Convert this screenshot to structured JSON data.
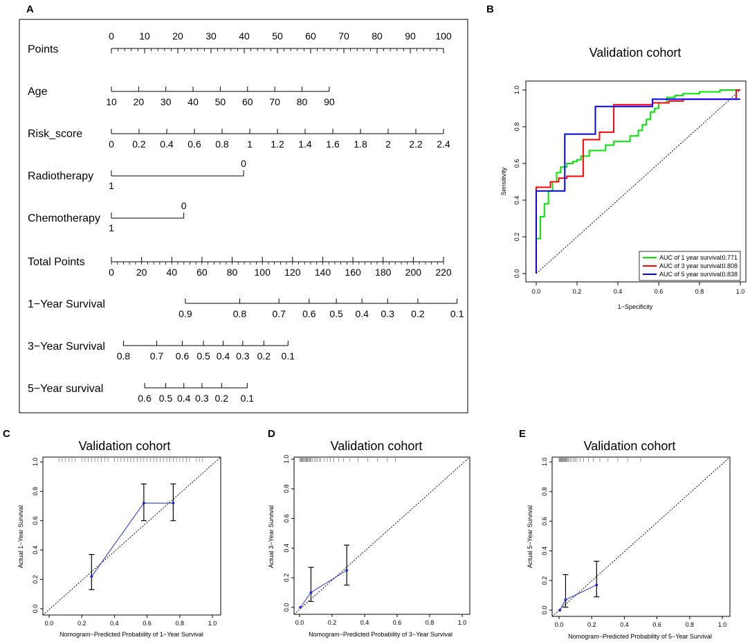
{
  "panel_labels": {
    "A": "A",
    "B": "B",
    "C": "C",
    "D": "D",
    "E": "E"
  },
  "chart_data": [
    {
      "panel": "A",
      "type": "nomogram",
      "scales": [
        {
          "name": "Points",
          "ticks": [
            "0",
            "10",
            "20",
            "30",
            "40",
            "50",
            "60",
            "70",
            "80",
            "90",
            "100"
          ],
          "values": [
            0,
            10,
            20,
            30,
            40,
            50,
            60,
            70,
            80,
            90,
            100
          ],
          "minor": true,
          "labels_above": true
        },
        {
          "name": "Age",
          "ticks": [
            "10",
            "20",
            "30",
            "40",
            "50",
            "60",
            "70",
            "80",
            "90"
          ],
          "points": [
            0,
            8.2,
            16.4,
            24.6,
            32.8,
            41.0,
            49.2,
            57.4,
            65.6
          ]
        },
        {
          "name": "Risk_score",
          "ticks": [
            "0",
            "0.2",
            "0.4",
            "0.6",
            "0.8",
            "1",
            "1.2",
            "1.4",
            "1.6",
            "1.8",
            "2",
            "2.2",
            "2.4"
          ],
          "points": [
            0,
            8.33,
            16.67,
            25,
            33.33,
            41.67,
            50,
            58.33,
            66.67,
            75,
            83.33,
            91.67,
            100
          ]
        },
        {
          "name": "Radiotherapy",
          "ticks": [
            "0",
            "1"
          ],
          "points": [
            39.8,
            0
          ],
          "ends": true
        },
        {
          "name": "Chemotherapy",
          "ticks": [
            "0",
            "1"
          ],
          "points": [
            21.8,
            0
          ],
          "ends": true
        },
        {
          "name": "Total Points",
          "ticks": [
            "0",
            "20",
            "40",
            "60",
            "80",
            "100",
            "120",
            "140",
            "160",
            "180",
            "200",
            "220"
          ],
          "values": [
            0,
            20,
            40,
            60,
            80,
            100,
            120,
            140,
            160,
            180,
            200,
            220
          ],
          "minor": true
        },
        {
          "name": "1−Year Survival",
          "ticks": [
            "0.9",
            "0.8",
            "0.7",
            "0.6",
            "0.5",
            "0.4",
            "0.3",
            "0.2",
            "0.1"
          ],
          "total_points": [
            49,
            85,
            111,
            131,
            149,
            166,
            183,
            203,
            229
          ]
        },
        {
          "name": "3−Year Survival",
          "ticks": [
            "0.8",
            "0.7",
            "0.6",
            "0.5",
            "0.4",
            "0.3",
            "0.2",
            "0.1"
          ],
          "total_points": [
            8,
            30,
            47,
            61,
            74,
            87,
            101,
            117
          ]
        },
        {
          "name": "5−Year survival",
          "ticks": [
            "0.6",
            "0.5",
            "0.4",
            "0.3",
            "0.2",
            "0.1"
          ],
          "total_points": [
            22,
            36,
            48,
            60,
            73,
            90
          ]
        }
      ]
    },
    {
      "panel": "B",
      "type": "line",
      "title": "Validation cohort",
      "xlabel": "1−Specificity",
      "ylabel": "Sensitivity",
      "xlim": [
        0,
        1
      ],
      "ylim": [
        0,
        1
      ],
      "ticks": [
        "0.0",
        "0.2",
        "0.4",
        "0.6",
        "0.8",
        "1.0"
      ],
      "series": [
        {
          "name": "AUC of 1 year survival:",
          "auc": "0.771",
          "color": "#00e600",
          "x": [
            0,
            0,
            0.02,
            0.02,
            0.04,
            0.04,
            0.06,
            0.06,
            0.08,
            0.08,
            0.1,
            0.1,
            0.12,
            0.12,
            0.15,
            0.15,
            0.18,
            0.18,
            0.2,
            0.2,
            0.22,
            0.22,
            0.26,
            0.26,
            0.34,
            0.34,
            0.38,
            0.38,
            0.46,
            0.46,
            0.5,
            0.5,
            0.52,
            0.52,
            0.54,
            0.54,
            0.56,
            0.56,
            0.58,
            0.58,
            0.6,
            0.6,
            0.64,
            0.64,
            0.68,
            0.68,
            0.72,
            0.72,
            0.8,
            0.8,
            0.9,
            0.9,
            1.0,
            1.0
          ],
          "y": [
            0,
            0.19,
            0.19,
            0.31,
            0.31,
            0.38,
            0.38,
            0.45,
            0.45,
            0.5,
            0.5,
            0.55,
            0.55,
            0.58,
            0.58,
            0.6,
            0.6,
            0.61,
            0.61,
            0.62,
            0.62,
            0.64,
            0.64,
            0.67,
            0.67,
            0.7,
            0.7,
            0.72,
            0.72,
            0.75,
            0.75,
            0.78,
            0.78,
            0.81,
            0.81,
            0.84,
            0.84,
            0.88,
            0.88,
            0.9,
            0.9,
            0.93,
            0.93,
            0.96,
            0.96,
            0.97,
            0.97,
            0.98,
            0.98,
            0.99,
            0.99,
            1.0,
            1.0,
            1.0
          ]
        },
        {
          "name": "AUC of 3 year survival:",
          "auc": "0.808",
          "color": "#ff0000",
          "x": [
            0,
            0,
            0.07,
            0.07,
            0.11,
            0.11,
            0.15,
            0.15,
            0.23,
            0.23,
            0.31,
            0.31,
            0.38,
            0.38,
            0.57,
            0.57,
            0.65,
            0.65,
            0.72,
            0.72,
            0.98,
            0.98,
            1.0
          ],
          "y": [
            0,
            0.47,
            0.47,
            0.5,
            0.5,
            0.52,
            0.52,
            0.53,
            0.53,
            0.73,
            0.73,
            0.77,
            0.77,
            0.92,
            0.92,
            0.93,
            0.93,
            0.94,
            0.94,
            0.95,
            0.95,
            1.0,
            1.0
          ]
        },
        {
          "name": "AUC of 5 year survival:",
          "auc": "0.838",
          "color": "#0000ff",
          "x": [
            0,
            0,
            0.14,
            0.14,
            0.29,
            0.29,
            0.57,
            0.57,
            1.0,
            1.0
          ],
          "y": [
            0,
            0.45,
            0.45,
            0.76,
            0.76,
            0.91,
            0.91,
            0.95,
            0.95,
            0.95
          ]
        }
      ],
      "reference": {
        "x": [
          0,
          1
        ],
        "y": [
          0,
          1
        ]
      }
    },
    {
      "panel": "C",
      "type": "scatter",
      "title": "Validation cohort",
      "xlabel": "Nomogram−Predicted Probability of 1−Year Survival",
      "ylabel": "Actual 1−Year Survival",
      "xlim": [
        0,
        1
      ],
      "ylim": [
        0,
        1
      ],
      "ticks": [
        "0.0",
        "0.2",
        "0.4",
        "0.6",
        "0.8",
        "1.0"
      ],
      "x": [
        0.26,
        0.58,
        0.76
      ],
      "y": [
        0.22,
        0.72,
        0.72
      ],
      "ci_low": [
        0.13,
        0.6,
        0.6
      ],
      "ci_high": [
        0.37,
        0.85,
        0.85
      ],
      "rug": [
        0.06,
        0.08,
        0.1,
        0.12,
        0.14,
        0.16,
        0.2,
        0.22,
        0.24,
        0.26,
        0.28,
        0.3,
        0.32,
        0.34,
        0.36,
        0.4,
        0.42,
        0.44,
        0.46,
        0.48,
        0.5,
        0.52,
        0.54,
        0.56,
        0.58,
        0.6,
        0.62,
        0.64,
        0.66,
        0.68,
        0.7,
        0.72,
        0.74,
        0.76,
        0.78,
        0.8,
        0.82,
        0.84,
        0.86,
        0.9,
        0.92,
        0.94
      ]
    },
    {
      "panel": "D",
      "type": "scatter",
      "title": "Validation cohort",
      "xlabel": "Nomogram−Predicted Probability of 3−Year Survival",
      "ylabel": "Actual 3−Year Survival",
      "xlim": [
        0,
        1
      ],
      "ylim": [
        0,
        1
      ],
      "ticks": [
        "0.0",
        "0.2",
        "0.4",
        "0.6",
        "0.8",
        "1.0"
      ],
      "x": [
        0.005,
        0.07,
        0.29
      ],
      "y": [
        0.0,
        0.1,
        0.25
      ],
      "ci_low": [
        0.0,
        0.04,
        0.15
      ],
      "ci_high": [
        0.0,
        0.27,
        0.42
      ],
      "rug": [
        0.0,
        0.005,
        0.01,
        0.015,
        0.02,
        0.025,
        0.03,
        0.035,
        0.04,
        0.045,
        0.05,
        0.055,
        0.06,
        0.065,
        0.07,
        0.08,
        0.09,
        0.1,
        0.11,
        0.12,
        0.13,
        0.15,
        0.17,
        0.19,
        0.21,
        0.24,
        0.27,
        0.31,
        0.36,
        0.42,
        0.48,
        0.54,
        0.59
      ]
    },
    {
      "panel": "E",
      "type": "scatter",
      "title": "Validation cohort",
      "xlabel": "Nomogram−Predicted Probability of 5−Year Survival",
      "ylabel": "Actual 5−Year Survival",
      "xlim": [
        0,
        1
      ],
      "ylim": [
        0,
        1
      ],
      "ticks": [
        "0.0",
        "0.2",
        "0.4",
        "0.6",
        "0.8",
        "1.0"
      ],
      "x": [
        0.005,
        0.04,
        0.23
      ],
      "y": [
        0.0,
        0.07,
        0.17
      ],
      "ci_low": [
        0.0,
        0.02,
        0.09
      ],
      "ci_high": [
        0.0,
        0.24,
        0.33
      ],
      "rug": [
        0.0,
        0.004,
        0.008,
        0.012,
        0.016,
        0.02,
        0.024,
        0.028,
        0.032,
        0.036,
        0.04,
        0.045,
        0.05,
        0.055,
        0.06,
        0.07,
        0.08,
        0.09,
        0.1,
        0.11,
        0.13,
        0.15,
        0.18,
        0.21,
        0.25,
        0.3,
        0.36,
        0.42,
        0.5
      ]
    }
  ]
}
